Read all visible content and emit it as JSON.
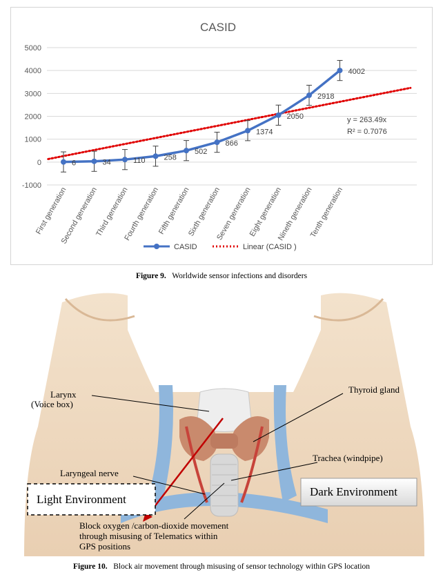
{
  "figure9": {
    "caption_label": "Figure 9.",
    "caption_text": "Worldwide sensor infections and disorders"
  },
  "chart_data": {
    "type": "line",
    "title": "CASID",
    "categories": [
      "First generation",
      "Second generation",
      "Third generation",
      "Fourth generation",
      "Fifth generation",
      "Sixth generation",
      "Seven generation",
      "Eight generation",
      "Nineth generation",
      "Tenth generation"
    ],
    "series": [
      {
        "name": "CASID",
        "values": [
          6,
          34,
          110,
          258,
          502,
          866,
          1374,
          2050,
          2918,
          4002
        ],
        "color": "#4472c4",
        "error_bar": 440
      }
    ],
    "trendline": {
      "name": "Linear (CASID )",
      "type": "linear",
      "slope": 263.49,
      "intercept": 0,
      "color": "#e00000",
      "equation": "y = 263.49x",
      "r_squared": "R² = 0.7076"
    },
    "ylim": [
      -1000,
      5000
    ],
    "yticks": [
      "-1000",
      "0",
      "1000",
      "2000",
      "3000",
      "4000",
      "5000"
    ],
    "grid": true,
    "legend": "bottom",
    "xlabel": "",
    "ylabel": ""
  },
  "figure10": {
    "caption_label": "Figure 10.",
    "caption_text": "Block air movement through misusing of sensor technology within GPS location",
    "labels": {
      "larynx": "Larynx",
      "voice_box": "(Voice box)",
      "thyroid": "Thyroid gland",
      "trachea": "Trachea (windpipe)",
      "laryngeal_nerve": "Laryngeal nerve",
      "light_env": "Light Environment",
      "dark_env": "Dark Environment",
      "block_line1": "Block oxygen /carbon-dioxide movement",
      "block_line2": "through misusing of Telematics within",
      "block_line3": "GPS positions"
    }
  }
}
